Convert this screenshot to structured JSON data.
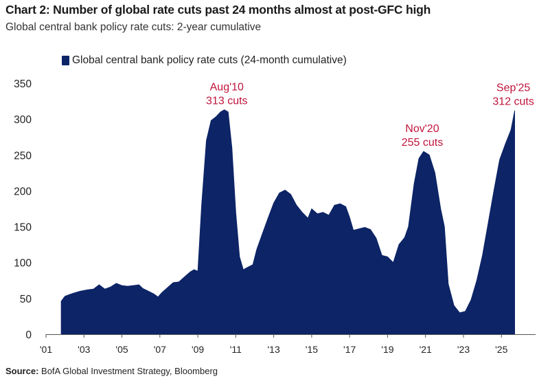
{
  "header": {
    "title": "Chart 2: Number of global rate cuts past 24 months almost at post-GFC high",
    "subtitle": "Global central bank policy rate cuts: 2-year cumulative"
  },
  "legend": {
    "label": "Global central bank policy rate cuts (24-month cumulative)",
    "color": "#0d2466"
  },
  "source": {
    "prefix": "Source:",
    "text": " BofA Global Investment Strategy, Bloomberg"
  },
  "chart_data": {
    "type": "area",
    "color": "#0d2466",
    "annotation_color": "#c0143c",
    "ylim": [
      0,
      350
    ],
    "xlim": [
      2001.0,
      2026.8
    ],
    "y_ticks": [
      0,
      50,
      100,
      150,
      200,
      250,
      300,
      350
    ],
    "x_ticks": [
      {
        "label": "'01",
        "x": 2001
      },
      {
        "label": "'03",
        "x": 2003
      },
      {
        "label": "'05",
        "x": 2005
      },
      {
        "label": "'07",
        "x": 2007
      },
      {
        "label": "'09",
        "x": 2009
      },
      {
        "label": "'11",
        "x": 2011
      },
      {
        "label": "'13",
        "x": 2013
      },
      {
        "label": "'15",
        "x": 2015
      },
      {
        "label": "'17",
        "x": 2017
      },
      {
        "label": "'19",
        "x": 2019
      },
      {
        "label": "'21",
        "x": 2021
      },
      {
        "label": "'23",
        "x": 2023
      },
      {
        "label": "'25",
        "x": 2025
      }
    ],
    "series": [
      {
        "points": [
          [
            2001.8,
            46
          ],
          [
            2002.0,
            53
          ],
          [
            2002.4,
            57
          ],
          [
            2002.8,
            60
          ],
          [
            2003.2,
            62
          ],
          [
            2003.5,
            63
          ],
          [
            2003.8,
            69
          ],
          [
            2004.1,
            63
          ],
          [
            2004.4,
            66
          ],
          [
            2004.7,
            71
          ],
          [
            2005.0,
            68
          ],
          [
            2005.3,
            67
          ],
          [
            2005.6,
            68
          ],
          [
            2005.9,
            69
          ],
          [
            2006.1,
            64
          ],
          [
            2006.4,
            60
          ],
          [
            2006.7,
            56
          ],
          [
            2006.9,
            52
          ],
          [
            2007.1,
            58
          ],
          [
            2007.4,
            65
          ],
          [
            2007.7,
            72
          ],
          [
            2008.0,
            73
          ],
          [
            2008.3,
            80
          ],
          [
            2008.6,
            87
          ],
          [
            2008.8,
            90
          ],
          [
            2009.0,
            88
          ],
          [
            2009.2,
            180
          ],
          [
            2009.45,
            270
          ],
          [
            2009.7,
            298
          ],
          [
            2009.95,
            303
          ],
          [
            2010.2,
            310
          ],
          [
            2010.4,
            313
          ],
          [
            2010.6,
            310
          ],
          [
            2010.8,
            260
          ],
          [
            2011.0,
            170
          ],
          [
            2011.2,
            108
          ],
          [
            2011.4,
            90
          ],
          [
            2011.6,
            93
          ],
          [
            2011.9,
            97
          ],
          [
            2012.1,
            118
          ],
          [
            2012.4,
            140
          ],
          [
            2012.7,
            162
          ],
          [
            2013.0,
            183
          ],
          [
            2013.3,
            197
          ],
          [
            2013.6,
            201
          ],
          [
            2013.9,
            195
          ],
          [
            2014.2,
            180
          ],
          [
            2014.5,
            170
          ],
          [
            2014.8,
            162
          ],
          [
            2015.0,
            175
          ],
          [
            2015.3,
            168
          ],
          [
            2015.6,
            170
          ],
          [
            2015.9,
            166
          ],
          [
            2016.2,
            180
          ],
          [
            2016.5,
            182
          ],
          [
            2016.8,
            178
          ],
          [
            2017.0,
            163
          ],
          [
            2017.2,
            145
          ],
          [
            2017.5,
            147
          ],
          [
            2017.8,
            149
          ],
          [
            2018.1,
            146
          ],
          [
            2018.4,
            134
          ],
          [
            2018.7,
            110
          ],
          [
            2019.0,
            108
          ],
          [
            2019.3,
            100
          ],
          [
            2019.6,
            125
          ],
          [
            2019.9,
            135
          ],
          [
            2020.1,
            150
          ],
          [
            2020.4,
            210
          ],
          [
            2020.65,
            245
          ],
          [
            2020.9,
            255
          ],
          [
            2021.2,
            250
          ],
          [
            2021.5,
            225
          ],
          [
            2021.8,
            175
          ],
          [
            2022.0,
            150
          ],
          [
            2022.2,
            70
          ],
          [
            2022.5,
            40
          ],
          [
            2022.8,
            30
          ],
          [
            2023.1,
            32
          ],
          [
            2023.4,
            48
          ],
          [
            2023.7,
            75
          ],
          [
            2024.0,
            110
          ],
          [
            2024.3,
            155
          ],
          [
            2024.6,
            200
          ],
          [
            2024.9,
            243
          ],
          [
            2025.2,
            265
          ],
          [
            2025.5,
            285
          ],
          [
            2025.7,
            312
          ]
        ]
      }
    ],
    "annotations": [
      {
        "line1": "Aug'10",
        "line2": "313 cuts",
        "x": 2010.6,
        "y": 313
      },
      {
        "line1": "Nov'20",
        "line2": "255 cuts",
        "x": 2020.9,
        "y": 255
      },
      {
        "line1": "Sep'25",
        "line2": "312 cuts",
        "x": 2025.7,
        "y": 312
      }
    ]
  }
}
